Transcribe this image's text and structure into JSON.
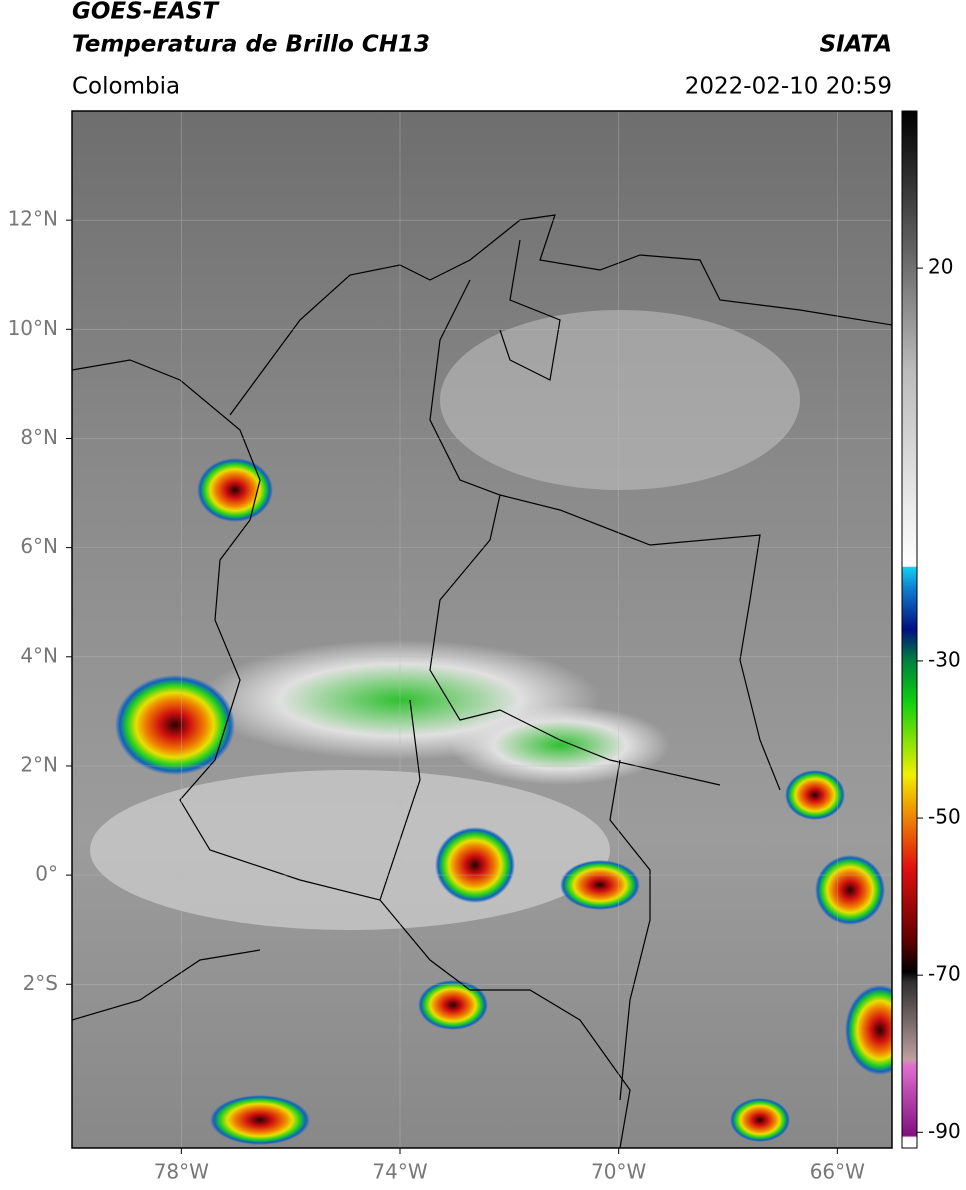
{
  "header": {
    "title": "GOES-EAST",
    "subtitle": "Temperatura de Brillo CH13",
    "source": "SIATA",
    "region": "Colombia",
    "datetime": "2022-02-10 20:59"
  },
  "map": {
    "xlim": [
      -80,
      -65
    ],
    "ylim": [
      -5,
      14
    ],
    "xticks": [
      {
        "value": -78,
        "label": "78°W"
      },
      {
        "value": -74,
        "label": "74°W"
      },
      {
        "value": -70,
        "label": "70°W"
      },
      {
        "value": -66,
        "label": "66°W"
      }
    ],
    "yticks": [
      {
        "value": 12,
        "label": "12°N"
      },
      {
        "value": 10,
        "label": "10°N"
      },
      {
        "value": 8,
        "label": "8°N"
      },
      {
        "value": 6,
        "label": "6°N"
      },
      {
        "value": 4,
        "label": "4°N"
      },
      {
        "value": 2,
        "label": "2°N"
      },
      {
        "value": 0,
        "label": "0°"
      },
      {
        "value": -2,
        "label": "2°S"
      }
    ],
    "grid": true
  },
  "colorbar": {
    "lim": [
      -92,
      40
    ],
    "ticks": [
      20,
      -30,
      -50,
      -70,
      -90
    ]
  }
}
